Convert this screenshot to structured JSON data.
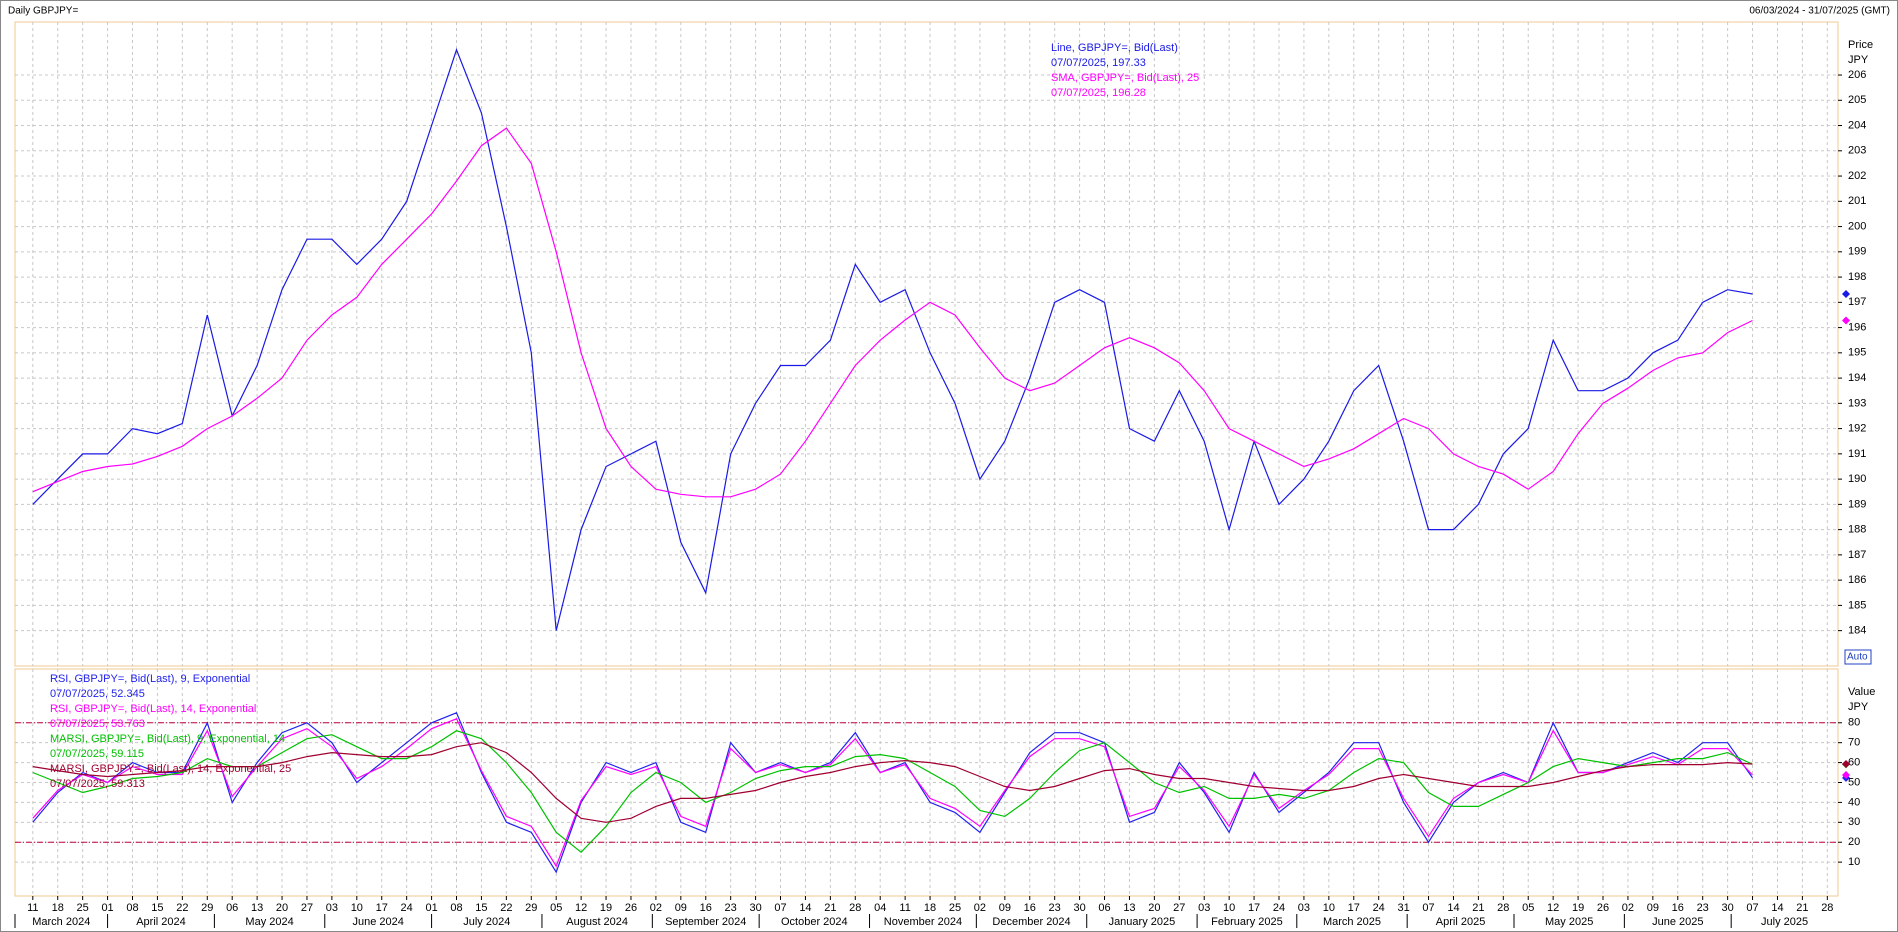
{
  "header": {
    "title": "Daily GBPJPY=",
    "range": "06/03/2024 - 31/07/2025 (GMT)"
  },
  "chart_data": [
    {
      "type": "line",
      "ylabel": "Price",
      "yunit": "JPY",
      "auto": "Auto",
      "grid": true,
      "xlim": [
        "2024-03-06",
        "2025-07-31"
      ],
      "ylim": [
        182.6,
        208.1
      ],
      "yticks": [
        184,
        185,
        186,
        187,
        188,
        189,
        190,
        191,
        192,
        193,
        194,
        195,
        196,
        197,
        198,
        199,
        200,
        201,
        202,
        203,
        204,
        205,
        206
      ],
      "x": [
        "2024-03-11",
        "2024-03-18",
        "2024-03-25",
        "2024-04-01",
        "2024-04-08",
        "2024-04-15",
        "2024-04-22",
        "2024-04-29",
        "2024-05-06",
        "2024-05-13",
        "2024-05-20",
        "2024-05-27",
        "2024-06-03",
        "2024-06-10",
        "2024-06-17",
        "2024-06-24",
        "2024-07-01",
        "2024-07-08",
        "2024-07-15",
        "2024-07-22",
        "2024-07-29",
        "2024-08-05",
        "2024-08-12",
        "2024-08-19",
        "2024-08-26",
        "2024-09-02",
        "2024-09-09",
        "2024-09-16",
        "2024-09-23",
        "2024-09-30",
        "2024-10-07",
        "2024-10-14",
        "2024-10-21",
        "2024-10-28",
        "2024-11-04",
        "2024-11-11",
        "2024-11-18",
        "2024-11-25",
        "2024-12-02",
        "2024-12-09",
        "2024-12-16",
        "2024-12-23",
        "2024-12-30",
        "2025-01-06",
        "2025-01-13",
        "2025-01-20",
        "2025-01-27",
        "2025-02-03",
        "2025-02-10",
        "2025-02-17",
        "2025-02-24",
        "2025-03-03",
        "2025-03-10",
        "2025-03-17",
        "2025-03-24",
        "2025-03-31",
        "2025-04-07",
        "2025-04-14",
        "2025-04-21",
        "2025-04-28",
        "2025-05-05",
        "2025-05-12",
        "2025-05-19",
        "2025-05-26",
        "2025-06-02",
        "2025-06-09",
        "2025-06-16",
        "2025-06-23",
        "2025-06-30",
        "2025-07-07"
      ],
      "series": [
        {
          "name": "Line, GBPJPY=, Bid(Last)",
          "last_label": "07/07/2025, 197.33",
          "color": "#1a1ae6",
          "values": [
            189.0,
            190.0,
            191.0,
            191.0,
            192.0,
            191.8,
            192.2,
            196.5,
            192.5,
            194.5,
            197.5,
            199.5,
            199.5,
            198.5,
            199.5,
            201.0,
            204.0,
            207.0,
            204.5,
            200.0,
            195.0,
            184.0,
            188.0,
            190.5,
            191.0,
            191.5,
            187.5,
            185.5,
            191.0,
            193.0,
            194.5,
            194.5,
            195.5,
            198.5,
            197.0,
            197.5,
            195.0,
            193.0,
            190.0,
            191.5,
            194.0,
            197.0,
            197.5,
            197.0,
            192.0,
            191.5,
            193.5,
            191.5,
            188.0,
            191.5,
            189.0,
            190.0,
            191.5,
            193.5,
            194.5,
            191.5,
            188.0,
            188.0,
            189.0,
            191.0,
            192.0,
            195.5,
            193.5,
            193.5,
            194.0,
            195.0,
            195.5,
            197.0,
            197.5,
            197.33
          ]
        },
        {
          "name": "SMA, GBPJPY=, Bid(Last),  25",
          "last_label": "07/07/2025, 196.28",
          "color": "#ff00ff",
          "values": [
            189.5,
            189.9,
            190.3,
            190.5,
            190.6,
            190.9,
            191.3,
            192.0,
            192.5,
            193.2,
            194.0,
            195.5,
            196.5,
            197.2,
            198.5,
            199.5,
            200.5,
            201.8,
            203.2,
            203.9,
            202.5,
            199.0,
            195.0,
            192.0,
            190.5,
            189.6,
            189.4,
            189.3,
            189.3,
            189.6,
            190.2,
            191.5,
            193.0,
            194.5,
            195.5,
            196.3,
            197.0,
            196.5,
            195.2,
            194.0,
            193.5,
            193.8,
            194.5,
            195.2,
            195.6,
            195.2,
            194.6,
            193.5,
            192.0,
            191.5,
            191.0,
            190.5,
            190.8,
            191.2,
            191.8,
            192.4,
            192.0,
            191.0,
            190.5,
            190.2,
            189.6,
            190.3,
            191.8,
            193.0,
            193.6,
            194.3,
            194.8,
            195.0,
            195.8,
            196.28
          ]
        }
      ]
    },
    {
      "type": "line",
      "ylabel": "Value",
      "yunit": "JPY",
      "grid": true,
      "xlim": [
        "2024-03-06",
        "2025-07-31"
      ],
      "ylim": [
        -7,
        107
      ],
      "yticks": [
        10,
        20,
        30,
        40,
        50,
        60,
        70,
        80
      ],
      "hlines": [
        80,
        20
      ],
      "hline_color": "#c00040",
      "x": [
        "2024-03-11",
        "2024-03-18",
        "2024-03-25",
        "2024-04-01",
        "2024-04-08",
        "2024-04-15",
        "2024-04-22",
        "2024-04-29",
        "2024-05-06",
        "2024-05-13",
        "2024-05-20",
        "2024-05-27",
        "2024-06-03",
        "2024-06-10",
        "2024-06-17",
        "2024-06-24",
        "2024-07-01",
        "2024-07-08",
        "2024-07-15",
        "2024-07-22",
        "2024-07-29",
        "2024-08-05",
        "2024-08-12",
        "2024-08-19",
        "2024-08-26",
        "2024-09-02",
        "2024-09-09",
        "2024-09-16",
        "2024-09-23",
        "2024-09-30",
        "2024-10-07",
        "2024-10-14",
        "2024-10-21",
        "2024-10-28",
        "2024-11-04",
        "2024-11-11",
        "2024-11-18",
        "2024-11-25",
        "2024-12-02",
        "2024-12-09",
        "2024-12-16",
        "2024-12-23",
        "2024-12-30",
        "2025-01-06",
        "2025-01-13",
        "2025-01-20",
        "2025-01-27",
        "2025-02-03",
        "2025-02-10",
        "2025-02-17",
        "2025-02-24",
        "2025-03-03",
        "2025-03-10",
        "2025-03-17",
        "2025-03-24",
        "2025-03-31",
        "2025-04-07",
        "2025-04-14",
        "2025-04-21",
        "2025-04-28",
        "2025-05-05",
        "2025-05-12",
        "2025-05-19",
        "2025-05-26",
        "2025-06-02",
        "2025-06-09",
        "2025-06-16",
        "2025-06-23",
        "2025-06-30",
        "2025-07-07"
      ],
      "xticks": [
        {
          "value": "2024-03-11",
          "label": "11"
        },
        {
          "value": "2024-03-18",
          "label": "18"
        },
        {
          "value": "2024-03-25",
          "label": "25"
        },
        {
          "value": "2024-04-01",
          "label": "01"
        },
        {
          "value": "2024-04-08",
          "label": "08"
        },
        {
          "value": "2024-04-15",
          "label": "15"
        },
        {
          "value": "2024-04-22",
          "label": "22"
        },
        {
          "value": "2024-04-29",
          "label": "29"
        },
        {
          "value": "2024-05-06",
          "label": "06"
        },
        {
          "value": "2024-05-13",
          "label": "13"
        },
        {
          "value": "2024-05-20",
          "label": "20"
        },
        {
          "value": "2024-05-27",
          "label": "27"
        },
        {
          "value": "2024-06-03",
          "label": "03"
        },
        {
          "value": "2024-06-10",
          "label": "10"
        },
        {
          "value": "2024-06-17",
          "label": "17"
        },
        {
          "value": "2024-06-24",
          "label": "24"
        },
        {
          "value": "2024-07-01",
          "label": "01"
        },
        {
          "value": "2024-07-08",
          "label": "08"
        },
        {
          "value": "2024-07-15",
          "label": "15"
        },
        {
          "value": "2024-07-22",
          "label": "22"
        },
        {
          "value": "2024-07-29",
          "label": "29"
        },
        {
          "value": "2024-08-05",
          "label": "05"
        },
        {
          "value": "2024-08-12",
          "label": "12"
        },
        {
          "value": "2024-08-19",
          "label": "19"
        },
        {
          "value": "2024-08-26",
          "label": "26"
        },
        {
          "value": "2024-09-02",
          "label": "02"
        },
        {
          "value": "2024-09-09",
          "label": "09"
        },
        {
          "value": "2024-09-16",
          "label": "16"
        },
        {
          "value": "2024-09-23",
          "label": "23"
        },
        {
          "value": "2024-09-30",
          "label": "30"
        },
        {
          "value": "2024-10-07",
          "label": "07"
        },
        {
          "value": "2024-10-14",
          "label": "14"
        },
        {
          "value": "2024-10-21",
          "label": "21"
        },
        {
          "value": "2024-10-28",
          "label": "28"
        },
        {
          "value": "2024-11-04",
          "label": "04"
        },
        {
          "value": "2024-11-11",
          "label": "11"
        },
        {
          "value": "2024-11-18",
          "label": "18"
        },
        {
          "value": "2024-11-25",
          "label": "25"
        },
        {
          "value": "2024-12-02",
          "label": "02"
        },
        {
          "value": "2024-12-09",
          "label": "09"
        },
        {
          "value": "2024-12-16",
          "label": "16"
        },
        {
          "value": "2024-12-23",
          "label": "23"
        },
        {
          "value": "2024-12-30",
          "label": "30"
        },
        {
          "value": "2025-01-06",
          "label": "06"
        },
        {
          "value": "2025-01-13",
          "label": "13"
        },
        {
          "value": "2025-01-20",
          "label": "20"
        },
        {
          "value": "2025-01-27",
          "label": "27"
        },
        {
          "value": "2025-02-03",
          "label": "03"
        },
        {
          "value": "2025-02-10",
          "label": "10"
        },
        {
          "value": "2025-02-17",
          "label": "17"
        },
        {
          "value": "2025-02-24",
          "label": "24"
        },
        {
          "value": "2025-03-03",
          "label": "03"
        },
        {
          "value": "2025-03-10",
          "label": "10"
        },
        {
          "value": "2025-03-17",
          "label": "17"
        },
        {
          "value": "2025-03-24",
          "label": "24"
        },
        {
          "value": "2025-03-31",
          "label": "31"
        },
        {
          "value": "2025-04-07",
          "label": "07"
        },
        {
          "value": "2025-04-14",
          "label": "14"
        },
        {
          "value": "2025-04-21",
          "label": "21"
        },
        {
          "value": "2025-04-28",
          "label": "28"
        },
        {
          "value": "2025-05-05",
          "label": "05"
        },
        {
          "value": "2025-05-12",
          "label": "12"
        },
        {
          "value": "2025-05-19",
          "label": "19"
        },
        {
          "value": "2025-05-26",
          "label": "26"
        },
        {
          "value": "2025-06-02",
          "label": "02"
        },
        {
          "value": "2025-06-09",
          "label": "09"
        },
        {
          "value": "2025-06-16",
          "label": "16"
        },
        {
          "value": "2025-06-23",
          "label": "23"
        },
        {
          "value": "2025-06-30",
          "label": "30"
        },
        {
          "value": "2025-07-07",
          "label": "07"
        },
        {
          "value": "2025-07-14",
          "label": "14"
        },
        {
          "value": "2025-07-21",
          "label": "21"
        },
        {
          "value": "2025-07-28",
          "label": "28"
        }
      ],
      "month_ticks": [
        {
          "value": "2024-03-01",
          "label": "March 2024"
        },
        {
          "value": "2024-04-01",
          "label": "April 2024"
        },
        {
          "value": "2024-05-01",
          "label": "May 2024"
        },
        {
          "value": "2024-06-01",
          "label": "June 2024"
        },
        {
          "value": "2024-07-01",
          "label": "July 2024"
        },
        {
          "value": "2024-08-01",
          "label": "August 2024"
        },
        {
          "value": "2024-09-01",
          "label": "September 2024"
        },
        {
          "value": "2024-10-01",
          "label": "October 2024"
        },
        {
          "value": "2024-11-01",
          "label": "November 2024"
        },
        {
          "value": "2024-12-01",
          "label": "December 2024"
        },
        {
          "value": "2025-01-01",
          "label": "January 2025"
        },
        {
          "value": "2025-02-01",
          "label": "February 2025"
        },
        {
          "value": "2025-03-01",
          "label": "March 2025"
        },
        {
          "value": "2025-04-01",
          "label": "April 2025"
        },
        {
          "value": "2025-05-01",
          "label": "May 2025"
        },
        {
          "value": "2025-06-01",
          "label": "June 2025"
        },
        {
          "value": "2025-07-01",
          "label": "July 2025"
        }
      ],
      "series": [
        {
          "name": "RSI, GBPJPY=, Bid(Last),  9, Exponential",
          "last_label": "07/07/2025, 52.345",
          "color": "#2222ee",
          "values": [
            30,
            45,
            55,
            50,
            60,
            55,
            55,
            80,
            40,
            60,
            75,
            80,
            70,
            50,
            60,
            70,
            80,
            85,
            55,
            30,
            25,
            5,
            40,
            60,
            55,
            60,
            30,
            25,
            70,
            55,
            60,
            55,
            60,
            75,
            55,
            60,
            40,
            35,
            25,
            45,
            65,
            75,
            75,
            70,
            30,
            35,
            60,
            45,
            25,
            55,
            35,
            45,
            55,
            70,
            70,
            40,
            20,
            40,
            50,
            55,
            50,
            80,
            55,
            55,
            60,
            65,
            60,
            70,
            70,
            52.345
          ]
        },
        {
          "name": "RSI, GBPJPY=, Bid(Last),  14, Exponential",
          "last_label": "07/07/2025, 53.763",
          "color": "#ff00ff",
          "values": [
            32,
            46,
            54,
            50,
            58,
            54,
            54,
            76,
            43,
            58,
            72,
            77,
            68,
            52,
            58,
            67,
            77,
            82,
            56,
            33,
            28,
            8,
            41,
            58,
            54,
            58,
            33,
            28,
            67,
            55,
            59,
            55,
            59,
            72,
            55,
            59,
            42,
            37,
            28,
            46,
            63,
            72,
            72,
            68,
            33,
            37,
            58,
            46,
            28,
            54,
            37,
            46,
            54,
            67,
            67,
            42,
            23,
            42,
            50,
            54,
            50,
            76,
            55,
            55,
            59,
            63,
            59,
            67,
            67,
            53.763
          ]
        },
        {
          "name": "MARSI, GBPJPY=, Bid(Last),  9, Exponential, 14",
          "last_label": "07/07/2025, 59.115",
          "color": "#00c000",
          "values": [
            55,
            50,
            45,
            48,
            52,
            53,
            55,
            62,
            58,
            58,
            65,
            72,
            74,
            68,
            62,
            62,
            68,
            76,
            72,
            60,
            45,
            25,
            15,
            28,
            45,
            55,
            50,
            40,
            45,
            52,
            56,
            58,
            58,
            63,
            64,
            62,
            55,
            48,
            36,
            33,
            42,
            55,
            66,
            70,
            60,
            50,
            45,
            48,
            42,
            42,
            44,
            42,
            46,
            55,
            62,
            60,
            45,
            38,
            38,
            44,
            50,
            58,
            62,
            60,
            58,
            60,
            62,
            62,
            65,
            59.115
          ]
        },
        {
          "name": "MARSI, GBPJPY=, Bid(Last),  14, Exponential, 25",
          "last_label": "07/07/2025, 59.313",
          "color": "#a00030",
          "values": [
            58,
            56,
            54,
            53,
            54,
            55,
            56,
            58,
            58,
            58,
            60,
            63,
            65,
            64,
            63,
            63,
            64,
            68,
            70,
            65,
            55,
            42,
            32,
            30,
            32,
            38,
            42,
            42,
            44,
            46,
            50,
            53,
            55,
            58,
            60,
            61,
            60,
            58,
            53,
            48,
            46,
            48,
            52,
            56,
            57,
            54,
            52,
            52,
            50,
            48,
            47,
            46,
            46,
            48,
            52,
            54,
            52,
            50,
            48,
            48,
            48,
            50,
            53,
            56,
            58,
            59,
            59,
            59,
            60,
            59.313
          ]
        }
      ]
    }
  ]
}
